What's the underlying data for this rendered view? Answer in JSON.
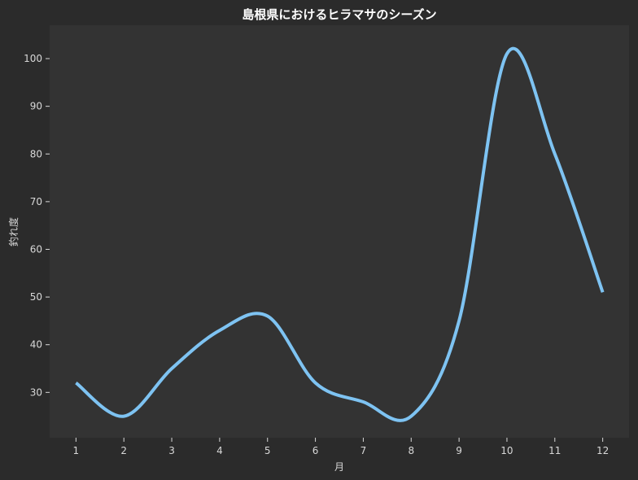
{
  "chart_data": {
    "type": "line",
    "title": "島根県におけるヒラマサのシーズン",
    "xlabel": "月",
    "ylabel": "釣れ度",
    "x": [
      1,
      2,
      3,
      4,
      5,
      6,
      7,
      8,
      9,
      10,
      11,
      12
    ],
    "series": [
      {
        "values": [
          32,
          25,
          35,
          43,
          46,
          32,
          28,
          25,
          45,
          101,
          80,
          51
        ]
      }
    ],
    "xlim": [
      0.45,
      12.55
    ],
    "ylim": [
      20.5,
      107
    ],
    "xticks": [
      1,
      2,
      3,
      4,
      5,
      6,
      7,
      8,
      9,
      10,
      11,
      12
    ],
    "yticks": [
      30,
      40,
      50,
      60,
      70,
      80,
      90,
      100
    ],
    "grid": false,
    "legend": "none",
    "colors": {
      "figure_bg": "#2b2b2b",
      "plot_bg": "#333333",
      "line": "#7ec3f2",
      "text": "#d8d8d8",
      "title": "#ffffff"
    }
  }
}
